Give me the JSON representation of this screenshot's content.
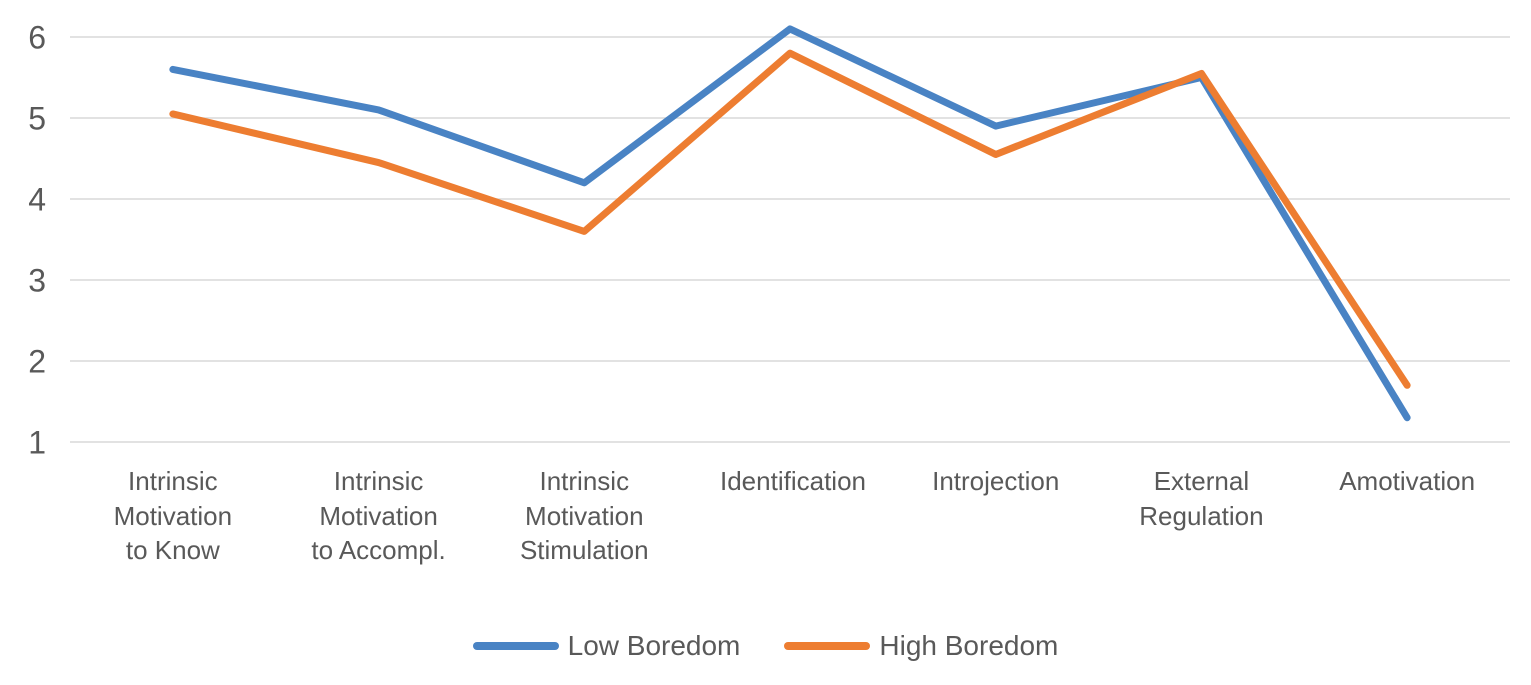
{
  "chart_data": {
    "type": "line",
    "categories": [
      "Intrinsic Motivation to Know",
      "Intrinsic Motivation to Accompl.",
      "Intrinsic Motivation Stimulation",
      "Identification",
      "Introjection",
      "External Regulation",
      "Amotivation"
    ],
    "series": [
      {
        "name": "Low Boredom",
        "color": "#4983C4",
        "values": [
          5.6,
          5.1,
          4.2,
          6.1,
          4.9,
          5.5,
          1.3
        ]
      },
      {
        "name": "High Boredom",
        "color": "#ED7D31",
        "values": [
          5.05,
          4.45,
          3.6,
          5.8,
          4.55,
          5.55,
          1.7
        ]
      }
    ],
    "ylim": [
      1,
      6
    ],
    "y_ticks": [
      6,
      5,
      4,
      3,
      2,
      1
    ],
    "grid": true,
    "legend_position": "bottom",
    "gridline_color": "#D9D9D9",
    "text_color": "#595959"
  }
}
